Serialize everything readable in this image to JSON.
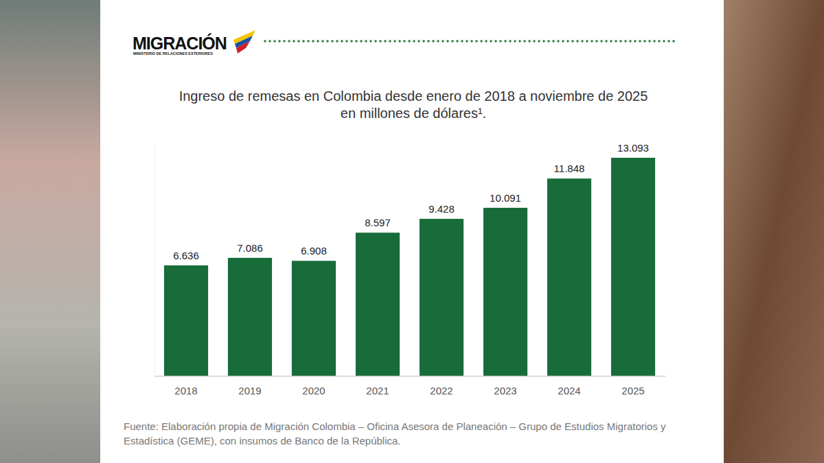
{
  "header": {
    "logo": "MIGRACIÓN",
    "logo_subtitle": "MINISTERIO DE RELACIONES EXTERIORES"
  },
  "chart_data": {
    "type": "bar",
    "title": "Ingreso de remesas en Colombia desde enero de 2018 a noviembre de 2025 en millones de dólares¹.",
    "categories": [
      "2018",
      "2019",
      "2020",
      "2021",
      "2022",
      "2023",
      "2024",
      "2025"
    ],
    "values": [
      6636,
      7086,
      6908,
      8597,
      9428,
      10091,
      11848,
      13093
    ],
    "value_labels": [
      "6.636",
      "7.086",
      "6.908",
      "8.597",
      "9.428",
      "10.091",
      "11.848",
      "13.093"
    ],
    "color": "#186c3a",
    "ylim": [
      0,
      14000
    ],
    "grid": false,
    "data_labels": true,
    "tick_labels": "x",
    "source": "Fuente: Elaboración propia de Migración Colombia – Oficina Asesora de Planeación – Grupo de Estudios Migratorios y Estadística (GEME), con insumos de Banco de la República."
  }
}
